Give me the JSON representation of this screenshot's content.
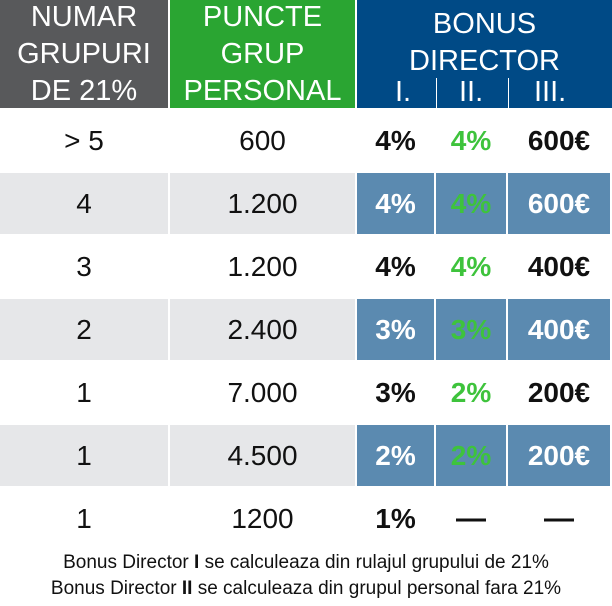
{
  "header": {
    "col1": [
      "NUMAR",
      "GRUPURI",
      "DE 21%"
    ],
    "col2": [
      "PUNCTE",
      "GRUP",
      "PERSONAL"
    ],
    "bonus_title": [
      "BONUS",
      "DIRECTOR"
    ],
    "levels": [
      "I.",
      "II.",
      "III."
    ]
  },
  "rows": [
    {
      "groups": "> 5",
      "points": "600",
      "b1": "4%",
      "b2": "4%",
      "b3": "600€"
    },
    {
      "groups": "4",
      "points": "1.200",
      "b1": "4%",
      "b2": "4%",
      "b3": "600€"
    },
    {
      "groups": "3",
      "points": "1.200",
      "b1": "4%",
      "b2": "4%",
      "b3": "400€"
    },
    {
      "groups": "2",
      "points": "2.400",
      "b1": "3%",
      "b2": "3%",
      "b3": "400€"
    },
    {
      "groups": "1",
      "points": "7.000",
      "b1": "3%",
      "b2": "2%",
      "b3": "200€"
    },
    {
      "groups": "1",
      "points": "4.500",
      "b1": "2%",
      "b2": "2%",
      "b3": "200€"
    },
    {
      "groups": "1",
      "points": "1200",
      "b1": "1%",
      "b2": "—",
      "b3": "—"
    }
  ],
  "notes": {
    "line1": {
      "pre": "Bonus Director ",
      "bold": "I",
      "post": " se calculeaza din rulajul grupului de 21%"
    },
    "line2": {
      "pre": "Bonus Director ",
      "bold": "II",
      "post": " se calculeaza din grupul personal fara 21%"
    }
  },
  "colors": {
    "gray_header": "#58595b",
    "green_header": "#2aa532",
    "blue_header": "#004a86",
    "alt_blue": "#5b8ab0",
    "alt_gray": "#e6e7e9",
    "green_text": "#3ec33c"
  }
}
